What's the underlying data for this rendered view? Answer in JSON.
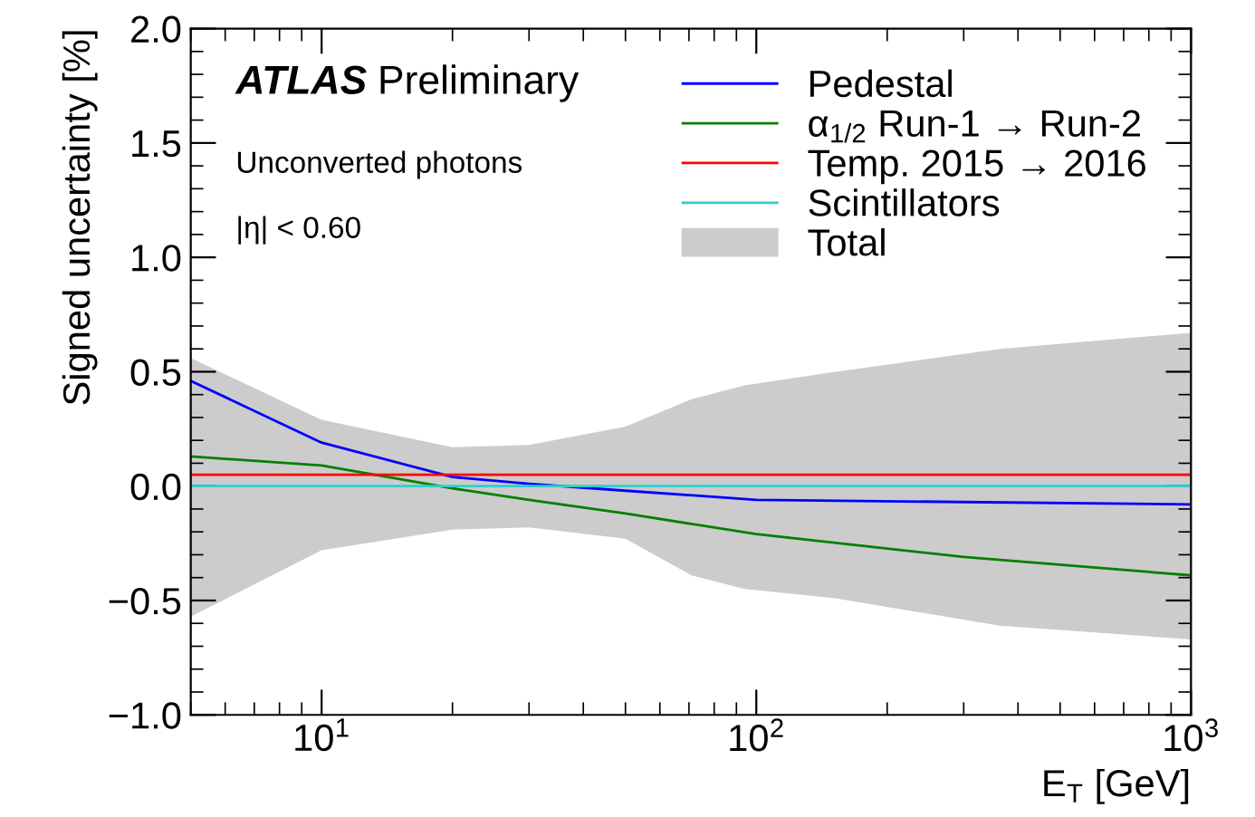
{
  "chart_data": {
    "type": "line",
    "xlabel": "E$_{T}$ [GeV]",
    "ylabel": "Signed uncertainty [%]",
    "annotations": [
      "ATLAS",
      "Preliminary",
      "Unconverted photons",
      "|η| < 0.60"
    ],
    "log": "x",
    "xlim": [
      5,
      1000
    ],
    "xticks": [
      {
        "value": 10,
        "label": "10$^{1}$"
      },
      {
        "value": 100,
        "label": "10$^{2}$"
      },
      {
        "value": 1000,
        "label": "10$^{3}$"
      }
    ],
    "ylim": [
      -1,
      2
    ],
    "yticks": [
      {
        "value": -1,
        "label": "−1.0"
      },
      {
        "value": -0.5,
        "label": "−0.5"
      },
      {
        "value": 0,
        "label": "0.0"
      },
      {
        "value": 0.5,
        "label": "0.5"
      },
      {
        "value": 1,
        "label": "1.0"
      },
      {
        "value": 1.5,
        "label": "1.5"
      },
      {
        "value": 2,
        "label": "2.0"
      }
    ],
    "grid": false,
    "legend": "top right",
    "marker": "none",
    "line_style": "solid",
    "series": [
      {
        "name": "Pedestal",
        "color": "#0000ff",
        "x": [
          5,
          10,
          20,
          30,
          50,
          100,
          1000
        ],
        "values": [
          0.46,
          0.19,
          0.04,
          0.01,
          -0.02,
          -0.06,
          -0.08
        ]
      },
      {
        "name": "α$_{1/2}$ Run-1 → Run-2",
        "color": "#008000",
        "x": [
          5,
          10,
          20,
          30,
          50,
          100,
          300,
          1000
        ],
        "values": [
          0.13,
          0.09,
          -0.01,
          -0.06,
          -0.12,
          -0.21,
          -0.31,
          -0.39
        ]
      },
      {
        "name": "Temp. 2015 → 2016",
        "color": "#ff0000",
        "x": [
          5,
          1000
        ],
        "values": [
          0.05,
          0.05
        ]
      },
      {
        "name": "Scintillators",
        "color": "#33cccc",
        "x": [
          5,
          1000
        ],
        "values": [
          0,
          0
        ]
      },
      {
        "name": "Total",
        "type": "area",
        "color": "#cccccc",
        "x": [
          5,
          10,
          20,
          30,
          50,
          71,
          94,
          152,
          363,
          1000
        ],
        "values": [
          0.56,
          0.29,
          0.17,
          0.18,
          0.26,
          0.38,
          0.44,
          0.5,
          0.6,
          0.67
        ]
      },
      {
        "type": "area",
        "color": "#cccccc",
        "x": [
          5,
          10,
          20,
          30,
          50,
          71,
          94,
          152,
          363,
          1000
        ],
        "values": [
          -0.57,
          -0.28,
          -0.19,
          -0.18,
          -0.23,
          -0.39,
          -0.45,
          -0.49,
          -0.61,
          -0.67
        ]
      }
    ]
  }
}
